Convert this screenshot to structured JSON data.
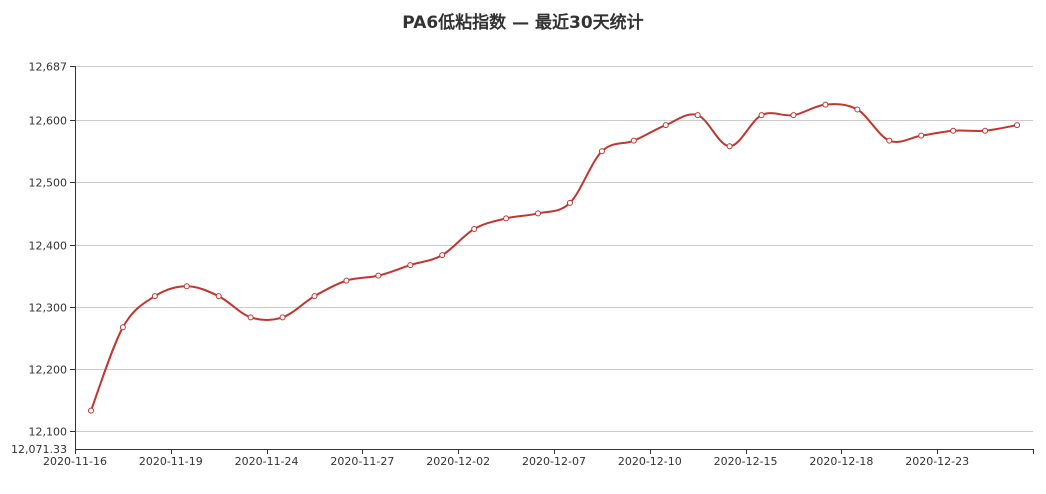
{
  "chart_data": {
    "type": "line",
    "title": "PA6低粘指数 — 最近30天统计",
    "xlabel": "",
    "ylabel": "",
    "ylim": [
      12071.33,
      12687
    ],
    "y_tick_values": [
      12100,
      12200,
      12300,
      12400,
      12500,
      12600,
      12687
    ],
    "y_tick_labels": [
      "12,100",
      "12,200",
      "12,300",
      "12,400",
      "12,500",
      "12,600",
      "12,687"
    ],
    "y_min_label": "12,071.33",
    "grid": true,
    "smooth": true,
    "line_color": "#c23531",
    "x_tick_labels": [
      "2020-11-16",
      "2020-11-19",
      "2020-11-24",
      "2020-11-27",
      "2020-12-02",
      "2020-12-07",
      "2020-12-10",
      "2020-12-15",
      "2020-12-18",
      "2020-12-23"
    ],
    "x": [
      "2020-11-16",
      "2020-11-17",
      "2020-11-18",
      "2020-11-19",
      "2020-11-20",
      "2020-11-23",
      "2020-11-24",
      "2020-11-25",
      "2020-11-26",
      "2020-11-27",
      "2020-11-30",
      "2020-12-01",
      "2020-12-02",
      "2020-12-03",
      "2020-12-04",
      "2020-12-07",
      "2020-12-08",
      "2020-12-09",
      "2020-12-10",
      "2020-12-11",
      "2020-12-14",
      "2020-12-15",
      "2020-12-16",
      "2020-12-17",
      "2020-12-18",
      "2020-12-21",
      "2020-12-22",
      "2020-12-23",
      "2020-12-24",
      "2020-12-25"
    ],
    "series": [
      {
        "values": [
          12133,
          12267,
          12317,
          12333,
          12317,
          12283,
          12283,
          12317,
          12342,
          12350,
          12367,
          12383,
          12425,
          12442,
          12450,
          12467,
          12550,
          12567,
          12592,
          12608,
          12558,
          12608,
          12608,
          12625,
          12617,
          12567,
          12575,
          12583,
          12583,
          12592
        ]
      }
    ]
  }
}
